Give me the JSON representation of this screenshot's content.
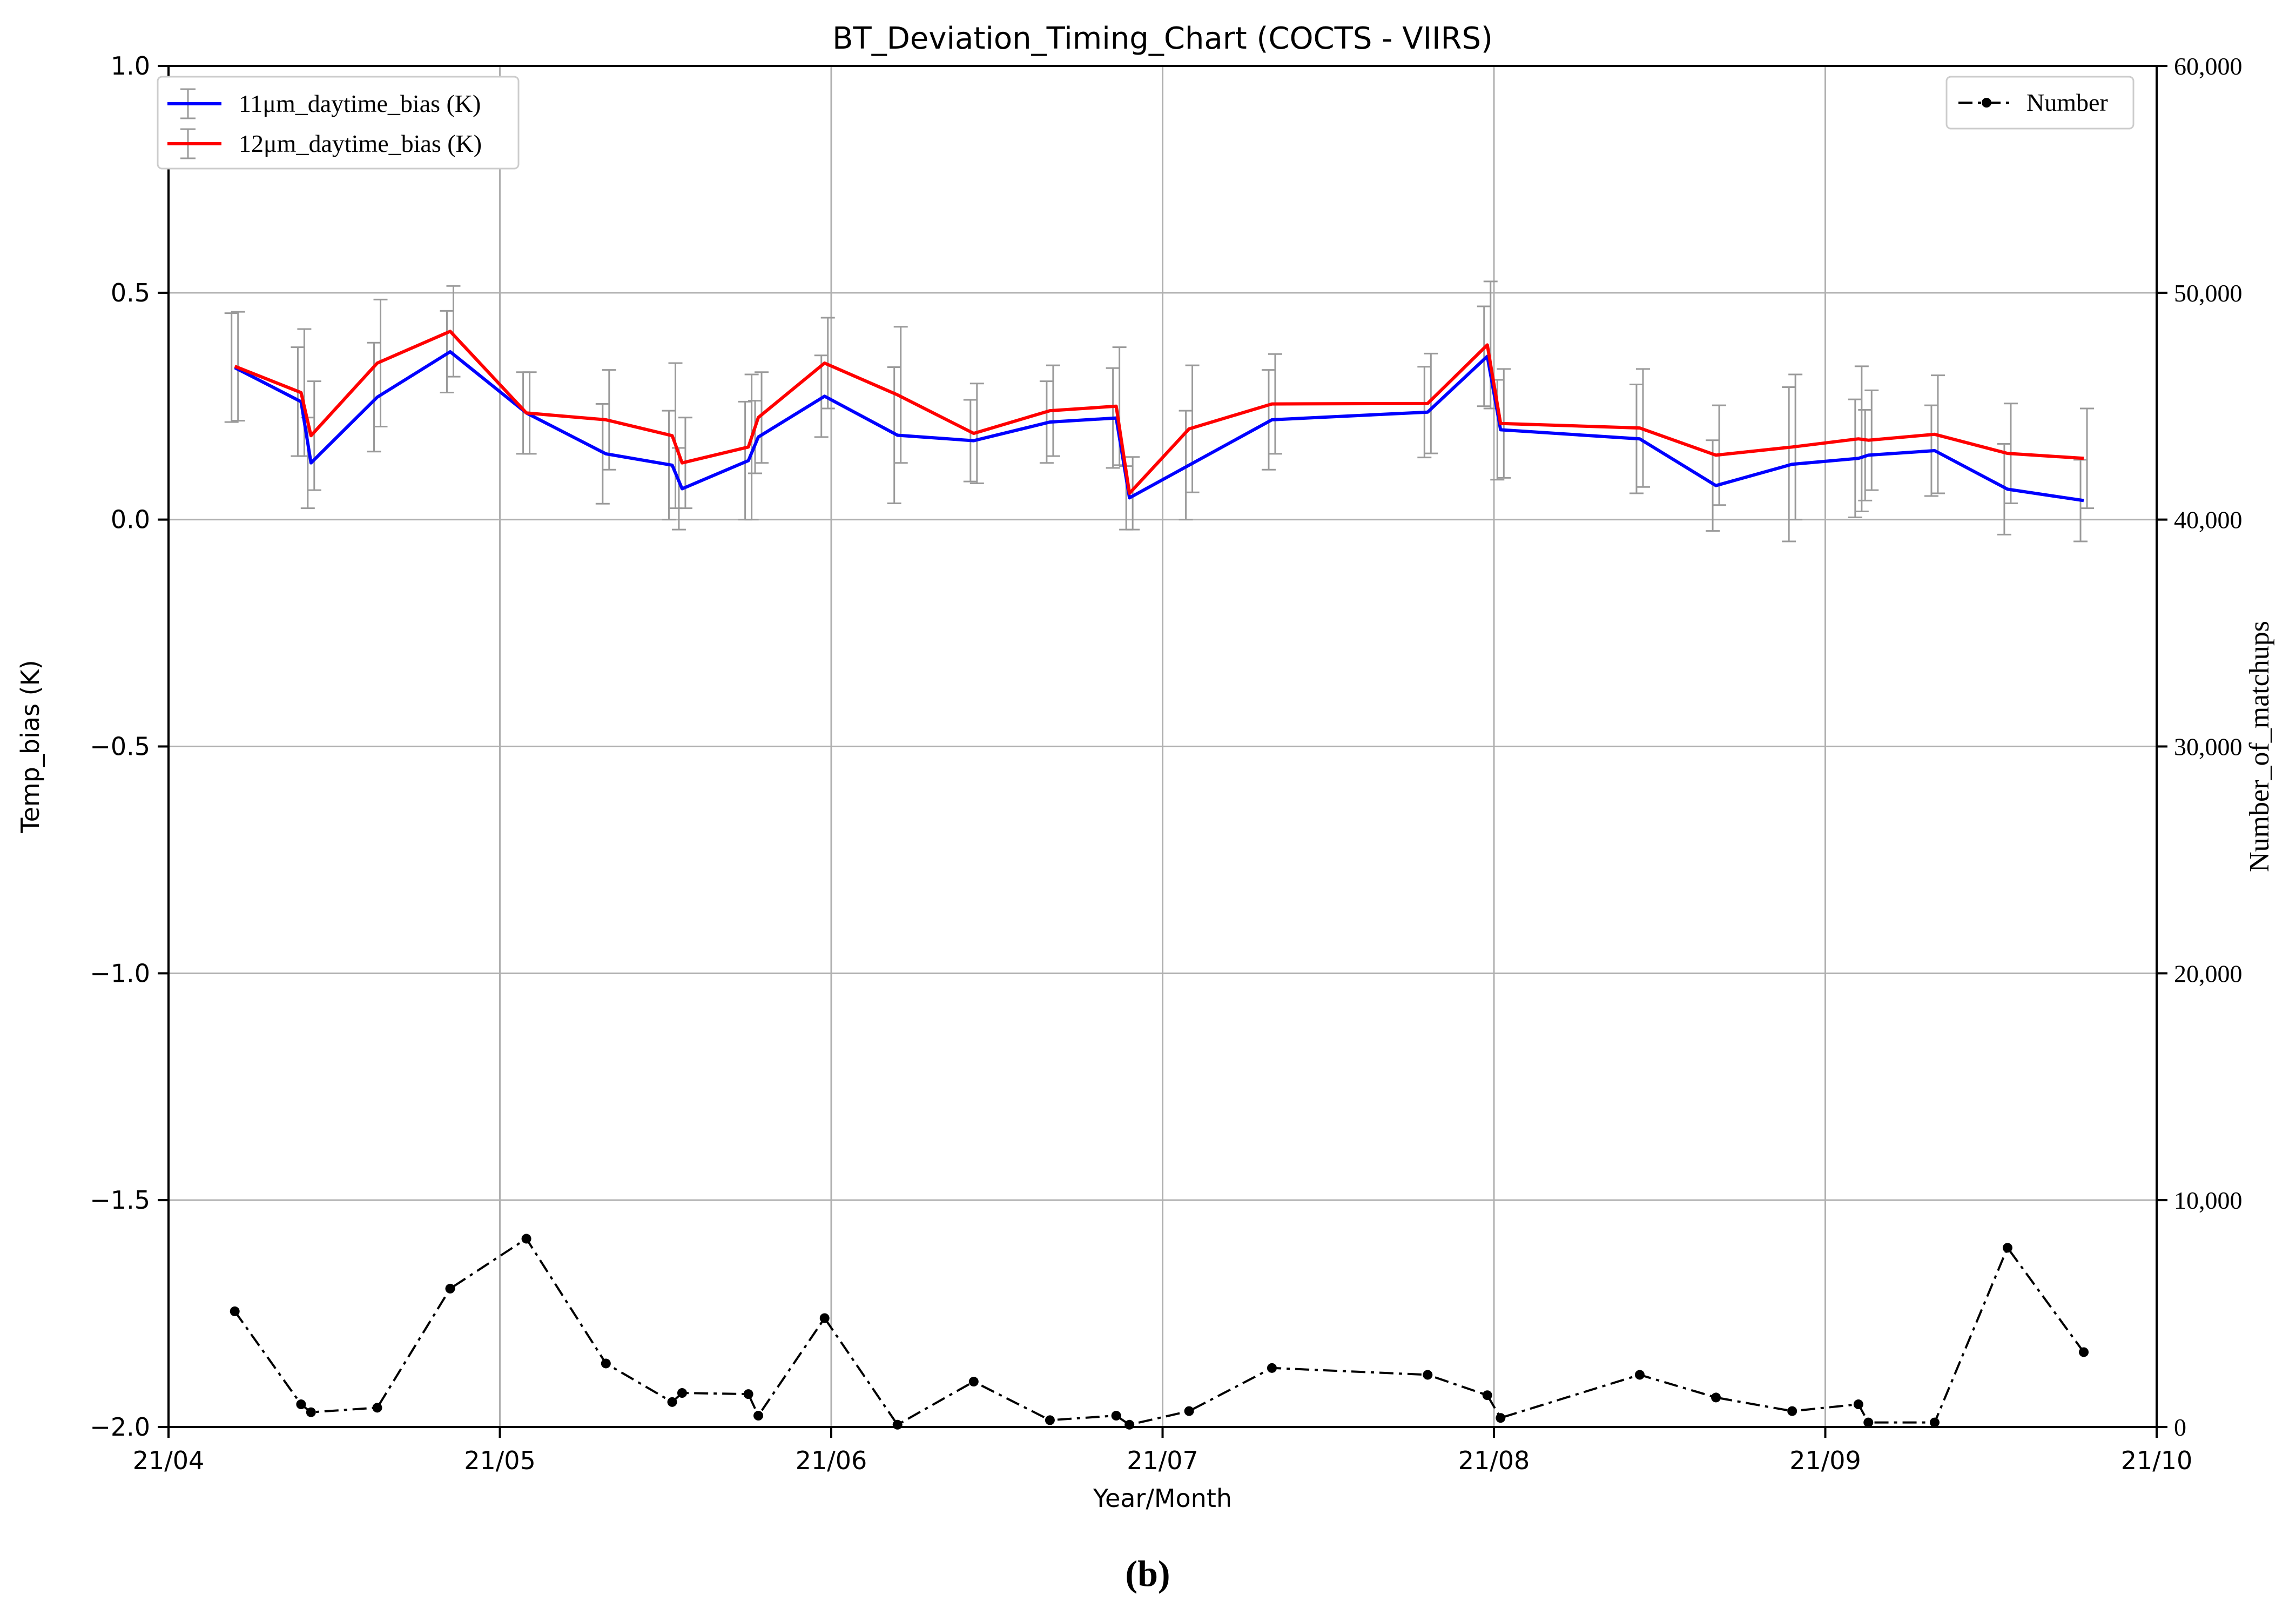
{
  "chart_data": {
    "type": "line",
    "title": "BT_Deviation_Timing_Chart (COCTS - VIIRS)",
    "xlabel": "Year/Month",
    "ylabel": "Temp_bias (K)",
    "y2label": "Number_of_matchups",
    "caption_open": "(",
    "caption_letter": "b",
    "caption_close": ")",
    "xlim": [
      0.0,
      6.0
    ],
    "ylim": [
      -2.0,
      1.0
    ],
    "y2lim": [
      0,
      60000
    ],
    "grid": true,
    "x_tick_values": [
      0,
      1,
      2,
      3,
      4,
      5,
      6
    ],
    "x_tick_labels": [
      "21/04",
      "21/05",
      "21/06",
      "21/07",
      "21/08",
      "21/09",
      "21/10"
    ],
    "y_tick_values": [
      1.0,
      0.5,
      0.0,
      -0.5,
      -1.0,
      -1.5,
      -2.0
    ],
    "y_tick_labels": [
      "1.0",
      "0.5",
      "0.0",
      "−0.5",
      "−1.0",
      "−1.5",
      "−2.0"
    ],
    "y2_tick_values": [
      60000,
      50000,
      40000,
      30000,
      20000,
      10000,
      0
    ],
    "y2_tick_labels": [
      "60,000",
      "50,000",
      "40,000",
      "30,000",
      "20,000",
      "10,000",
      "0"
    ],
    "legend_left": {
      "placement": "top-left",
      "entries": [
        "11μm_daytime_bias (K)",
        "12μm_daytime_bias (K)"
      ]
    },
    "legend_right": {
      "placement": "top-right",
      "entries": [
        "Number"
      ]
    },
    "series": [
      {
        "name": "11μm_daytime_bias (K)",
        "axis": "left",
        "color": "#0000ff",
        "x": [
          0.2,
          0.4,
          0.43,
          0.63,
          0.85,
          1.08,
          1.32,
          1.52,
          1.55,
          1.75,
          1.78,
          1.98,
          2.2,
          2.43,
          2.66,
          2.86,
          2.9,
          3.08,
          3.33,
          3.8,
          3.98,
          4.02,
          4.44,
          4.67,
          4.9,
          5.1,
          5.13,
          5.33,
          5.55,
          5.78
        ],
        "values": [
          0.335,
          0.26,
          0.125,
          0.27,
          0.37,
          0.235,
          0.145,
          0.12,
          0.068,
          0.13,
          0.182,
          0.272,
          0.186,
          0.174,
          0.215,
          0.224,
          0.048,
          0.12,
          0.22,
          0.237,
          0.36,
          0.198,
          0.178,
          0.075,
          0.122,
          0.135,
          0.142,
          0.152,
          0.067,
          0.042
        ],
        "err": [
          0.12,
          0.12,
          0.1,
          0.12,
          0.09,
          0.09,
          0.11,
          0.12,
          0.09,
          0.13,
          0.08,
          0.09,
          0.15,
          0.09,
          0.09,
          0.11,
          0.07,
          0.12,
          0.11,
          0.1,
          0.11,
          0.11,
          0.12,
          0.1,
          0.17,
          0.13,
          0.1,
          0.1,
          0.1,
          0.09
        ]
      },
      {
        "name": "12μm_daytime_bias (K)",
        "axis": "left",
        "color": "#ff0000",
        "x": [
          0.2,
          0.4,
          0.43,
          0.63,
          0.85,
          1.08,
          1.32,
          1.52,
          1.55,
          1.75,
          1.78,
          1.98,
          2.2,
          2.43,
          2.66,
          2.86,
          2.9,
          3.08,
          3.33,
          3.8,
          3.98,
          4.02,
          4.44,
          4.67,
          4.9,
          5.1,
          5.13,
          5.33,
          5.55,
          5.78
        ],
        "values": [
          0.338,
          0.28,
          0.185,
          0.345,
          0.415,
          0.235,
          0.22,
          0.185,
          0.125,
          0.16,
          0.225,
          0.345,
          0.275,
          0.19,
          0.24,
          0.25,
          0.058,
          0.2,
          0.255,
          0.256,
          0.385,
          0.212,
          0.202,
          0.142,
          0.16,
          0.178,
          0.175,
          0.188,
          0.146,
          0.135
        ],
        "err": [
          0.12,
          0.14,
          0.12,
          0.14,
          0.1,
          0.09,
          0.11,
          0.16,
          0.1,
          0.16,
          0.1,
          0.1,
          0.15,
          0.11,
          0.1,
          0.13,
          0.08,
          0.14,
          0.11,
          0.11,
          0.14,
          0.12,
          0.13,
          0.11,
          0.16,
          0.16,
          0.11,
          0.13,
          0.11,
          0.11
        ]
      },
      {
        "name": "Number",
        "axis": "right",
        "color": "#000000",
        "style": "dash-dot",
        "marker": "dot",
        "x": [
          0.2,
          0.4,
          0.43,
          0.63,
          0.85,
          1.08,
          1.32,
          1.52,
          1.55,
          1.75,
          1.78,
          1.98,
          2.2,
          2.43,
          2.66,
          2.86,
          2.9,
          3.08,
          3.33,
          3.8,
          3.98,
          4.02,
          4.44,
          4.67,
          4.9,
          5.1,
          5.13,
          5.33,
          5.55,
          5.78
        ],
        "values": [
          5100,
          1000,
          650,
          850,
          6100,
          8300,
          2800,
          1100,
          1500,
          1450,
          500,
          4800,
          100,
          2000,
          300,
          500,
          100,
          700,
          2600,
          2300,
          1400,
          400,
          2300,
          1300,
          700,
          1000,
          200,
          200,
          7900,
          3300
        ]
      }
    ]
  }
}
